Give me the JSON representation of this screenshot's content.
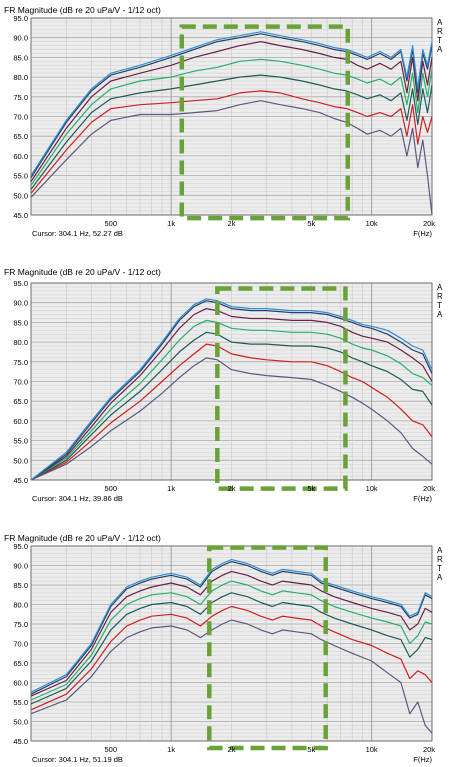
{
  "chart_data": [
    {
      "type": "line",
      "title": "FR Magnitude (dB re 20 uPa/V - 1/12 oct)",
      "cursor": "Cursor: 304.1 Hz, 52.27 dB",
      "xlabel": "F(Hz)",
      "side_label": [
        "A",
        "R",
        "T",
        "A"
      ],
      "xscale": "log",
      "xlim": [
        200,
        20000
      ],
      "ylim": [
        45,
        95
      ],
      "grid": true,
      "y_ticks": [
        "95.0",
        "90.0",
        "85.0",
        "80.0",
        "75.0",
        "70.0",
        "65.0",
        "60.0",
        "55.0",
        "50.0",
        "45.0"
      ],
      "x_ticks": [
        {
          "v": 500,
          "label": "500"
        },
        {
          "v": 1000,
          "label": "1k"
        },
        {
          "v": 2000,
          "label": "2k"
        },
        {
          "v": 5000,
          "label": "5k"
        },
        {
          "v": 10000,
          "label": "10k"
        },
        {
          "v": 20000,
          "label": "20k"
        }
      ],
      "highlight": {
        "x": [
          1130,
          7600
        ],
        "y": [
          44.2,
          92.8
        ]
      },
      "x": [
        200,
        300,
        400,
        500,
        700,
        1000,
        1300,
        1700,
        2200,
        2800,
        3500,
        4500,
        5500,
        6500,
        7500,
        8500,
        9500,
        11000,
        12500,
        14000,
        15000,
        16000,
        17000,
        18000,
        19000,
        20000
      ],
      "series": [
        {
          "color": "#2a8fd6",
          "values": [
            55,
            69,
            77,
            81,
            83,
            85.5,
            87.5,
            89.5,
            90.5,
            91.5,
            90.5,
            89.5,
            88.5,
            87.5,
            87,
            86,
            85,
            86.5,
            85,
            87,
            80,
            88,
            77,
            87,
            83,
            89
          ]
        },
        {
          "color": "#2c3e66",
          "values": [
            54.5,
            68.5,
            76.5,
            80.5,
            82.5,
            85,
            87,
            89,
            90,
            91,
            90,
            89,
            88,
            87,
            86.5,
            85.5,
            84.5,
            86,
            84.5,
            86.5,
            79,
            87,
            76,
            86,
            82,
            88
          ]
        },
        {
          "color": "#6a2245",
          "values": [
            53.5,
            67,
            75,
            79,
            81,
            83,
            85,
            86.5,
            88,
            89,
            88,
            87,
            86,
            85,
            84.5,
            83,
            82,
            83.5,
            82,
            84,
            76,
            85,
            74,
            84,
            78,
            85
          ]
        },
        {
          "color": "#25b06a",
          "values": [
            52.5,
            65.5,
            73,
            77,
            79,
            80,
            81.5,
            82.5,
            84,
            84.5,
            84,
            83,
            82,
            81,
            80.5,
            79.5,
            78.5,
            79.5,
            78,
            80,
            73,
            81,
            71,
            81,
            75,
            82
          ]
        },
        {
          "color": "#1e5a5a",
          "values": [
            51.5,
            63.5,
            71,
            74.5,
            76,
            77,
            78,
            79,
            80,
            80.5,
            80,
            79,
            78,
            77,
            76.5,
            75.5,
            74.5,
            75.5,
            74,
            76,
            69,
            77,
            68,
            77,
            71,
            78
          ]
        },
        {
          "color": "#d02020",
          "values": [
            50.5,
            61.5,
            68.5,
            72,
            73,
            73.5,
            74,
            74.5,
            76,
            76.5,
            76,
            74.5,
            73.5,
            72.5,
            72,
            71,
            70,
            71,
            70,
            72,
            65,
            73,
            63,
            70,
            66,
            70
          ]
        },
        {
          "color": "#5a5a80",
          "values": [
            49.5,
            59,
            65.5,
            69,
            70.5,
            70.5,
            71,
            71.5,
            73,
            74,
            73,
            72,
            71,
            69.5,
            68.5,
            67,
            65.5,
            66.5,
            65,
            67,
            60,
            67,
            57,
            64,
            55,
            45
          ]
        }
      ]
    },
    {
      "type": "line",
      "title": "FR Magnitude (dB re 20 uPa/V - 1/12 oct)",
      "cursor": "Cursor: 304.1 Hz, 39.86 dB",
      "xlabel": "F(Hz)",
      "side_label": [
        "A",
        "R",
        "T",
        "A"
      ],
      "xscale": "log",
      "xlim": [
        200,
        20000
      ],
      "ylim": [
        45,
        95
      ],
      "grid": true,
      "y_ticks": [
        "95.0",
        "90.0",
        "85.0",
        "80.0",
        "75.0",
        "70.0",
        "65.0",
        "60.0",
        "55.0",
        "50.0",
        "45.0"
      ],
      "x_ticks": [
        {
          "v": 500,
          "label": "500"
        },
        {
          "v": 1000,
          "label": "1k"
        },
        {
          "v": 2000,
          "label": "2k"
        },
        {
          "v": 5000,
          "label": "5k"
        },
        {
          "v": 10000,
          "label": "10k"
        },
        {
          "v": 20000,
          "label": "20k"
        }
      ],
      "highlight": {
        "x": [
          1700,
          7400
        ],
        "y": [
          42.8,
          93.6
        ]
      },
      "x": [
        200,
        300,
        400,
        500,
        700,
        900,
        1100,
        1300,
        1500,
        1700,
        2000,
        2500,
        3000,
        4000,
        5000,
        6000,
        7000,
        8000,
        9000,
        10000,
        12000,
        14000,
        16000,
        18000,
        20000
      ],
      "series": [
        {
          "color": "#2a8fd6",
          "values": [
            45,
            52,
            60,
            66,
            73,
            80,
            86,
            89.5,
            91,
            90.5,
            89,
            88.5,
            88.5,
            88,
            88,
            87.5,
            86.5,
            85.5,
            84.5,
            84,
            83,
            81,
            79,
            78,
            73
          ]
        },
        {
          "color": "#2c3e66",
          "values": [
            45,
            51.5,
            59.5,
            65.5,
            72.5,
            79.5,
            85.5,
            89,
            90.5,
            90,
            88.5,
            88,
            88,
            87.5,
            87.5,
            87,
            86,
            85,
            84,
            83.5,
            82,
            80,
            78,
            77,
            72
          ]
        },
        {
          "color": "#6a2245",
          "values": [
            45,
            51,
            58.5,
            64.5,
            71.5,
            78,
            83.5,
            87,
            88.5,
            88,
            86.5,
            86,
            86,
            85.5,
            85.5,
            85,
            84,
            82.5,
            81.5,
            81,
            80,
            78,
            76,
            74,
            70
          ]
        },
        {
          "color": "#25b06a",
          "values": [
            45,
            50.5,
            57.5,
            63,
            69.5,
            75.5,
            80.5,
            84,
            85.5,
            85,
            83.5,
            83,
            83,
            82.5,
            82.5,
            82,
            81,
            79.5,
            78.5,
            78,
            76.5,
            74.5,
            72,
            71,
            69
          ]
        },
        {
          "color": "#1e5a5a",
          "values": [
            45,
            50,
            56.5,
            61.5,
            67.5,
            73,
            77.5,
            80.5,
            82.5,
            82,
            80,
            79.5,
            79.5,
            79,
            79,
            78.5,
            77.5,
            76,
            75,
            74,
            72.5,
            70.5,
            68,
            67.5,
            64
          ]
        },
        {
          "color": "#d02020",
          "values": [
            45,
            49.5,
            55,
            59.5,
            65,
            70,
            74,
            77,
            79.5,
            79,
            77,
            76,
            75.5,
            75,
            75,
            74,
            72.5,
            71,
            70,
            68.5,
            66,
            63,
            60,
            59,
            56
          ]
        },
        {
          "color": "#5a5a80",
          "values": [
            45,
            49,
            53.5,
            57.5,
            62.5,
            67,
            71,
            74,
            76,
            75.5,
            73,
            72,
            71.5,
            71,
            70.5,
            69,
            67.5,
            66,
            64.5,
            63,
            60,
            57,
            53,
            51,
            49
          ]
        }
      ]
    },
    {
      "type": "line",
      "title": "FR Magnitude (dB re 20 uPa/V - 1/12 oct)",
      "cursor": "Cursor: 304.1 Hz, 51.19 dB",
      "xlabel": "F(Hz)",
      "side_label": [
        "A",
        "R",
        "T",
        "A"
      ],
      "xscale": "log",
      "xlim": [
        200,
        20000
      ],
      "ylim": [
        45,
        95
      ],
      "grid": true,
      "y_ticks": [
        "95.0",
        "90.0",
        "85.0",
        "80.0",
        "75.0",
        "70.0",
        "65.0",
        "60.0",
        "55.0",
        "50.0",
        "45.0"
      ],
      "x_ticks": [
        {
          "v": 500,
          "label": "500"
        },
        {
          "v": 1000,
          "label": "1k"
        },
        {
          "v": 2000,
          "label": "2k"
        },
        {
          "v": 5000,
          "label": "5k"
        },
        {
          "v": 10000,
          "label": "10k"
        },
        {
          "v": 20000,
          "label": "20k"
        }
      ],
      "highlight": {
        "x": [
          1550,
          5900
        ],
        "y": [
          43.2,
          94.6
        ]
      },
      "x": [
        200,
        300,
        400,
        500,
        600,
        700,
        800,
        1000,
        1200,
        1400,
        1600,
        1800,
        2000,
        2400,
        2800,
        3200,
        3600,
        4200,
        5000,
        5600,
        6500,
        8000,
        10000,
        12000,
        14000,
        15500,
        17000,
        18500,
        20000
      ],
      "series": [
        {
          "color": "#2a8fd6",
          "values": [
            57.5,
            62,
            70,
            80,
            84.5,
            86,
            87,
            88,
            87,
            85,
            89,
            90.5,
            91.5,
            90.5,
            89,
            88,
            89,
            88.5,
            88,
            86,
            85,
            83.5,
            82,
            81,
            80,
            77,
            78,
            83,
            82
          ]
        },
        {
          "color": "#2c3e66",
          "values": [
            57,
            61.5,
            69.5,
            79.5,
            84,
            85.5,
            86.5,
            87.5,
            86.5,
            84.5,
            88.5,
            90,
            91,
            90,
            88.5,
            87.5,
            88.5,
            88,
            87.5,
            85.5,
            84.5,
            83,
            81.5,
            80.5,
            79.5,
            76.5,
            77.5,
            82.5,
            81.5
          ]
        },
        {
          "color": "#6a2245",
          "values": [
            56.5,
            60.5,
            68.5,
            78,
            82,
            83.5,
            84.5,
            85.5,
            84.5,
            82.5,
            86,
            87.5,
            88.5,
            87.5,
            86,
            85,
            86,
            85.5,
            85,
            83.5,
            82,
            80.5,
            79,
            78,
            77,
            73.5,
            75,
            79,
            78
          ]
        },
        {
          "color": "#25b06a",
          "values": [
            55.5,
            59.5,
            67,
            76,
            80,
            81.5,
            82.5,
            83,
            82,
            80,
            83.5,
            85,
            86,
            85,
            83.5,
            82.5,
            83.5,
            83,
            82.5,
            81,
            79.5,
            78,
            76.5,
            75.5,
            74.5,
            70,
            72,
            75.5,
            75
          ]
        },
        {
          "color": "#1e5a5a",
          "values": [
            54.5,
            58.5,
            65.5,
            73.5,
            77.5,
            79,
            80,
            80.5,
            79.5,
            77.5,
            80.5,
            82,
            83,
            82,
            80.5,
            79.5,
            80.5,
            80,
            79.5,
            78,
            76.5,
            75,
            73.5,
            72,
            71,
            66.5,
            68.5,
            71.5,
            71
          ]
        },
        {
          "color": "#d02020",
          "values": [
            53,
            57,
            63.5,
            70.5,
            74.5,
            76,
            77,
            77.5,
            76.5,
            74.5,
            77,
            78.5,
            79.5,
            78.5,
            77,
            76,
            77,
            76.5,
            76,
            74.5,
            73,
            71,
            69.5,
            67.5,
            66,
            61,
            63,
            62,
            60
          ]
        },
        {
          "color": "#5a5a80",
          "values": [
            52,
            55.5,
            61.5,
            68,
            71.5,
            73,
            74,
            74.5,
            73.5,
            71.5,
            73.5,
            75,
            76,
            75,
            73.5,
            72.5,
            73.5,
            73,
            72.5,
            71,
            69.5,
            67.5,
            65.5,
            62.5,
            60,
            52,
            55,
            49,
            47
          ]
        }
      ]
    }
  ]
}
